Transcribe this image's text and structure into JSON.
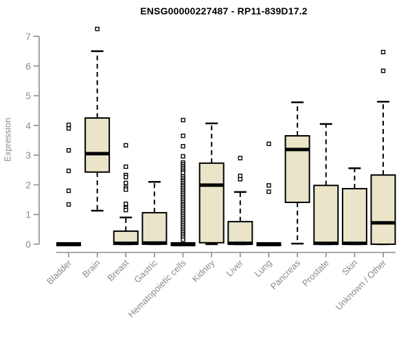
{
  "chart_data": {
    "type": "boxplot",
    "title": "ENSG00000227487 - RP11-839D17.2",
    "xlabel": "",
    "ylabel": "Expression",
    "ylim": [
      0,
      7
    ],
    "yticks": [
      0,
      1,
      2,
      3,
      4,
      5,
      6,
      7
    ],
    "grid": false,
    "legend": "none",
    "categories": [
      "Bladder",
      "Brain",
      "Breast",
      "Gastric",
      "Hematopoietic cells",
      "Kidney",
      "Liver",
      "Lung",
      "Pancreas",
      "Prostate",
      "Skin",
      "Unknown / Other"
    ],
    "boxes": [
      {
        "category": "Bladder",
        "low": 0,
        "q1": 0,
        "median": 0,
        "q3": 0,
        "high": 0,
        "outliers": [
          4.02,
          3.9,
          3.16,
          2.47,
          1.8,
          1.34
        ]
      },
      {
        "category": "Brain",
        "low": 1.13,
        "q1": 2.43,
        "median": 3.05,
        "q3": 4.25,
        "high": 6.5,
        "outliers": [
          7.25
        ]
      },
      {
        "category": "Breast",
        "low": 0,
        "q1": 0,
        "median": 0.03,
        "q3": 0.44,
        "high": 0.9,
        "outliers": [
          3.33,
          2.61,
          2.33,
          2.26,
          2.06,
          1.9,
          1.84,
          1.36,
          1.22,
          1.15
        ]
      },
      {
        "category": "Gastric",
        "low": 0,
        "q1": 0,
        "median": 0.04,
        "q3": 1.06,
        "high": 2.1,
        "outliers": []
      },
      {
        "category": "Hematopoietic cells",
        "low": 0,
        "q1": 0,
        "median": 0,
        "q3": 0,
        "high": 0,
        "outliers": [
          4.18,
          3.65,
          3.3,
          2.96,
          2.75,
          2.69,
          2.63,
          2.57,
          2.51,
          2.45,
          2.4,
          2.29,
          2.23,
          2.17,
          2.12,
          2.06,
          2.0,
          1.95,
          1.89,
          1.83,
          1.77,
          1.71,
          1.65,
          1.59,
          1.53,
          1.47,
          1.41,
          1.35,
          1.3,
          1.24,
          1.18,
          1.12,
          1.06,
          1.0,
          0.94,
          0.88,
          0.82,
          0.76,
          0.7,
          0.64,
          0.58,
          0.52,
          0.46,
          0.4,
          0.34,
          0.28,
          0.22,
          0.15
        ]
      },
      {
        "category": "Kidney",
        "low": 0,
        "q1": 0.05,
        "median": 1.99,
        "q3": 2.73,
        "high": 4.07,
        "outliers": []
      },
      {
        "category": "Liver",
        "low": 0,
        "q1": 0,
        "median": 0.03,
        "q3": 0.76,
        "high": 1.76,
        "outliers": [
          2.9,
          2.3,
          2.19
        ]
      },
      {
        "category": "Lung",
        "low": 0,
        "q1": 0,
        "median": 0,
        "q3": 0,
        "high": 0,
        "outliers": [
          3.38,
          1.98,
          1.77
        ]
      },
      {
        "category": "Pancreas",
        "low": 0.02,
        "q1": 1.41,
        "median": 3.19,
        "q3": 3.65,
        "high": 4.78,
        "outliers": []
      },
      {
        "category": "Prostate",
        "low": 0,
        "q1": 0,
        "median": 0.03,
        "q3": 1.98,
        "high": 4.05,
        "outliers": []
      },
      {
        "category": "Skin",
        "low": 0,
        "q1": 0,
        "median": 0.03,
        "q3": 1.87,
        "high": 2.56,
        "outliers": []
      },
      {
        "category": "Unknown / Other",
        "low": 0,
        "q1": 0,
        "median": 0.72,
        "q3": 2.33,
        "high": 4.8,
        "outliers": [
          6.47,
          5.84
        ]
      }
    ],
    "colors": {
      "box_fill": "#EAE4C9",
      "box_stroke": "#000000",
      "median": "#000000",
      "whisker": "#000000",
      "outlier_stroke": "#000000",
      "outlier_fill": "#ffffff",
      "axis": "#8a8a8a",
      "tick_label": "#8a8a8a",
      "title": "#000000",
      "background": "#ffffff"
    }
  }
}
